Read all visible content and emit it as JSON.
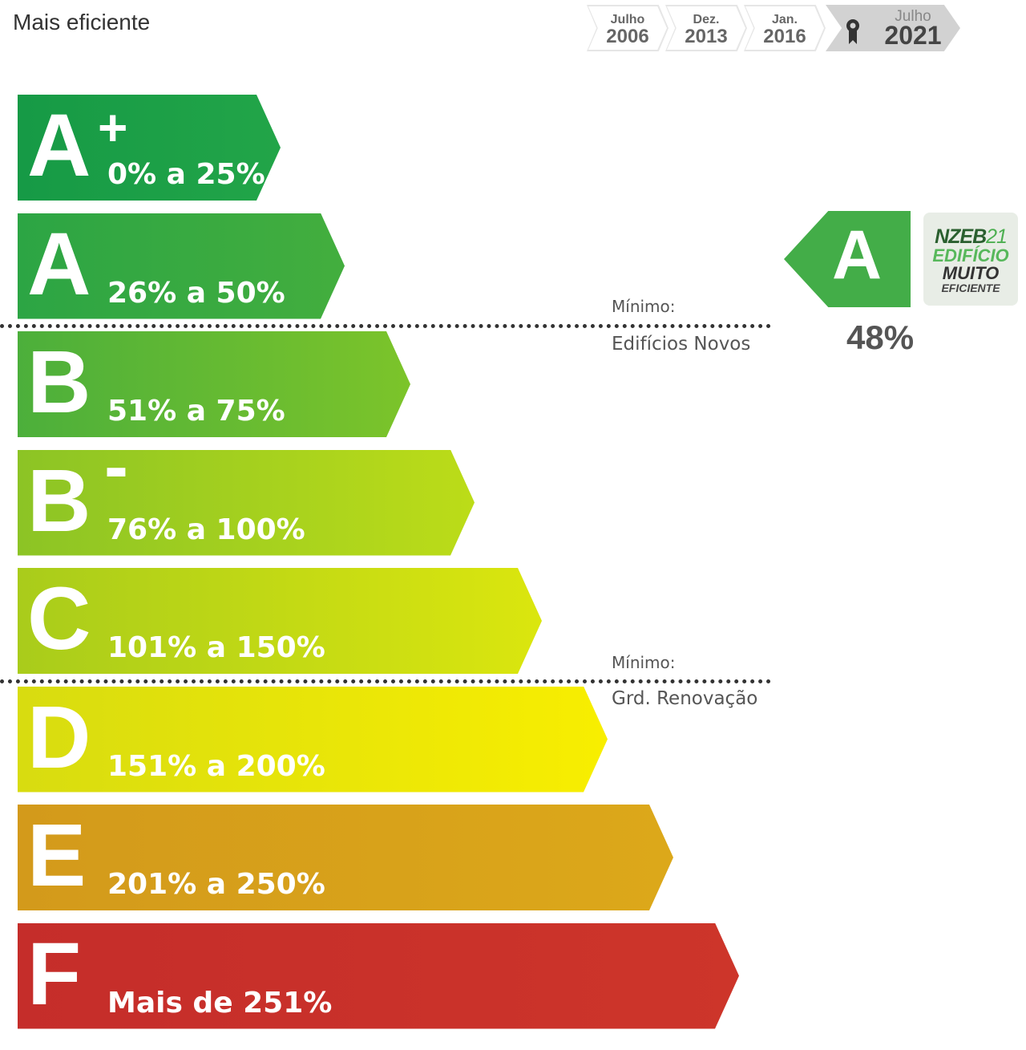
{
  "header": {
    "title": "Mais eficiente"
  },
  "timeline": [
    {
      "month": "Julho",
      "year": "2006",
      "active": false
    },
    {
      "month": "Dez.",
      "year": "2013",
      "active": false
    },
    {
      "month": "Jan.",
      "year": "2016",
      "active": false
    },
    {
      "month": "Julho",
      "year": "2021",
      "active": true,
      "icon": "award-ribbon-icon"
    }
  ],
  "classes": [
    {
      "letter": "A",
      "suffix": "+",
      "range": "0% a 25%",
      "color": "#1a9e48"
    },
    {
      "letter": "A",
      "suffix": "",
      "range": "26% a 50%",
      "color": "#33a845"
    },
    {
      "letter": "B",
      "suffix": "",
      "range": "51% a 75%",
      "color": "#62b834"
    },
    {
      "letter": "B",
      "suffix": "-",
      "range": "76% a 100%",
      "color": "#9fcc22"
    },
    {
      "letter": "C",
      "suffix": "",
      "range": "101% a 150%",
      "color": "#c4d916"
    },
    {
      "letter": "D",
      "suffix": "",
      "range": "151% a 200%",
      "color": "#eae602"
    },
    {
      "letter": "E",
      "suffix": "",
      "range": "201% a 250%",
      "color": "#d9a11a"
    },
    {
      "letter": "F",
      "suffix": "",
      "range": "Mais de 251%",
      "color": "#c9302a"
    }
  ],
  "thresholds": [
    {
      "label": "Mínimo:",
      "sub": "Edifícios Novos"
    },
    {
      "label": "Mínimo:",
      "sub": "Grd. Renovação"
    }
  ],
  "current": {
    "letter": "A",
    "value": "48%",
    "color": "#43ad48"
  },
  "badge": {
    "line1": "NZEB",
    "line1b": "21",
    "line2": "EDIFÍCIO",
    "line3": "MUITO",
    "line4": "EFICIENTE"
  }
}
